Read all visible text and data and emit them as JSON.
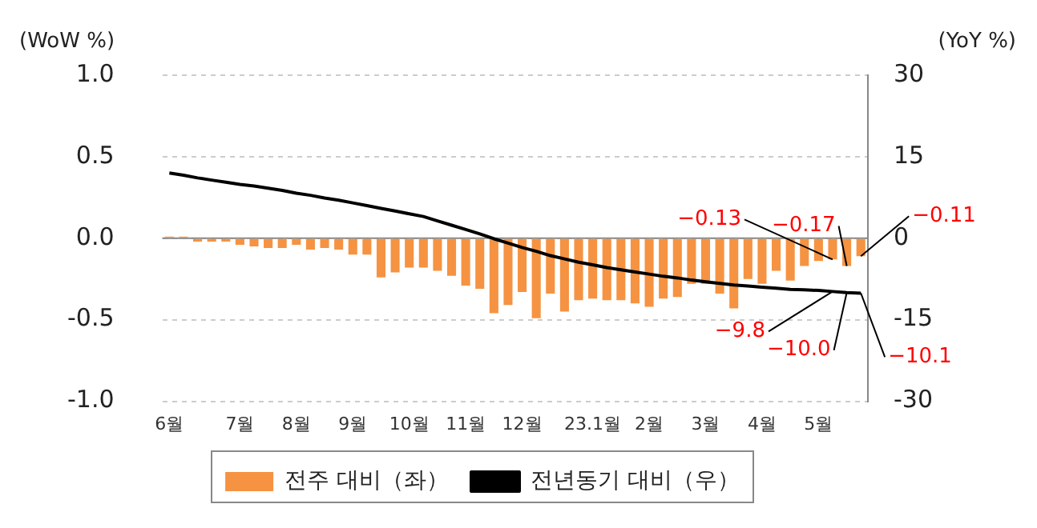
{
  "chart_data": {
    "type": "bar",
    "ylabel": "(WoW %)",
    "y2label": "(YoY %)",
    "categories": [
      "6월",
      null,
      null,
      null,
      null,
      "7월",
      null,
      null,
      null,
      "8월",
      null,
      null,
      null,
      "9월",
      null,
      null,
      null,
      "10월",
      null,
      null,
      null,
      "11월",
      null,
      null,
      null,
      "12월",
      null,
      null,
      null,
      null,
      "23.1월",
      null,
      null,
      null,
      "2월",
      null,
      null,
      null,
      "3월",
      null,
      null,
      null,
      "4월",
      null,
      null,
      null,
      "5월",
      null,
      null,
      null
    ],
    "series": [
      {
        "name": "전주 대비（좌）",
        "color": "#f59342",
        "values": [
          0.01,
          0.01,
          -0.02,
          -0.02,
          -0.02,
          -0.04,
          -0.05,
          -0.06,
          -0.06,
          -0.04,
          -0.07,
          -0.06,
          -0.07,
          -0.1,
          -0.1,
          -0.24,
          -0.21,
          -0.18,
          -0.18,
          -0.2,
          -0.23,
          -0.29,
          -0.31,
          -0.46,
          -0.41,
          -0.33,
          -0.49,
          -0.34,
          -0.45,
          -0.38,
          -0.37,
          -0.38,
          -0.38,
          -0.4,
          -0.42,
          -0.37,
          -0.36,
          -0.28,
          -0.28,
          -0.34,
          -0.43,
          -0.25,
          -0.28,
          -0.2,
          -0.26,
          -0.17,
          -0.14,
          -0.13,
          -0.17,
          -0.11
        ],
        "value_labels": [
          null,
          null,
          null,
          null,
          null,
          null,
          null,
          null,
          null,
          null,
          null,
          null,
          null,
          null,
          null,
          null,
          null,
          null,
          null,
          null,
          null,
          null,
          null,
          null,
          null,
          null,
          null,
          null,
          null,
          null,
          null,
          null,
          null,
          null,
          null,
          null,
          null,
          null,
          null,
          null,
          null,
          null,
          null,
          null,
          null,
          null,
          null,
          "−0.13",
          "−0.17",
          "−0.11"
        ]
      },
      {
        "name": "전년동기 대비（우）",
        "type": "line",
        "axis": "y2",
        "color": "#000000",
        "values": [
          12.0,
          11.6,
          11.1,
          10.7,
          10.3,
          9.9,
          9.6,
          9.2,
          8.8,
          8.3,
          7.9,
          7.4,
          7.0,
          6.5,
          6.0,
          5.5,
          5.0,
          4.5,
          4.0,
          3.2,
          2.4,
          1.6,
          0.8,
          -0.1,
          -0.9,
          -1.7,
          -2.4,
          -3.2,
          -3.8,
          -4.4,
          -4.9,
          -5.4,
          -5.8,
          -6.2,
          -6.6,
          -7.0,
          -7.3,
          -7.7,
          -8.0,
          -8.3,
          -8.6,
          -8.8,
          -9.0,
          -9.2,
          -9.4,
          -9.5,
          -9.6,
          -9.8,
          -10.0,
          -10.1
        ],
        "value_labels": [
          null,
          null,
          null,
          null,
          null,
          null,
          null,
          null,
          null,
          null,
          null,
          null,
          null,
          null,
          null,
          null,
          null,
          null,
          null,
          null,
          null,
          null,
          null,
          null,
          null,
          null,
          null,
          null,
          null,
          null,
          null,
          null,
          null,
          null,
          null,
          null,
          null,
          null,
          null,
          null,
          null,
          null,
          null,
          null,
          null,
          null,
          null,
          "−9.8",
          "−10.0",
          "−10.1"
        ]
      }
    ],
    "ylim": [
      -1,
      1
    ],
    "yticks": [
      {
        "value": -1,
        "label": "-1.0"
      },
      {
        "value": -0.5,
        "label": "-0.5"
      },
      {
        "value": 0,
        "label": "0.0"
      },
      {
        "value": 0.5,
        "label": "0.5"
      },
      {
        "value": 1,
        "label": "1.0"
      }
    ],
    "y2lim": [
      -30,
      30
    ],
    "y2ticks": [
      -30,
      -15,
      0,
      15,
      30
    ],
    "ref_lines": [
      {
        "axis": "y",
        "value": 0,
        "color": "#888888"
      }
    ],
    "grid": "y",
    "legend": "bottom",
    "marker": "none",
    "line_style": "solid"
  }
}
